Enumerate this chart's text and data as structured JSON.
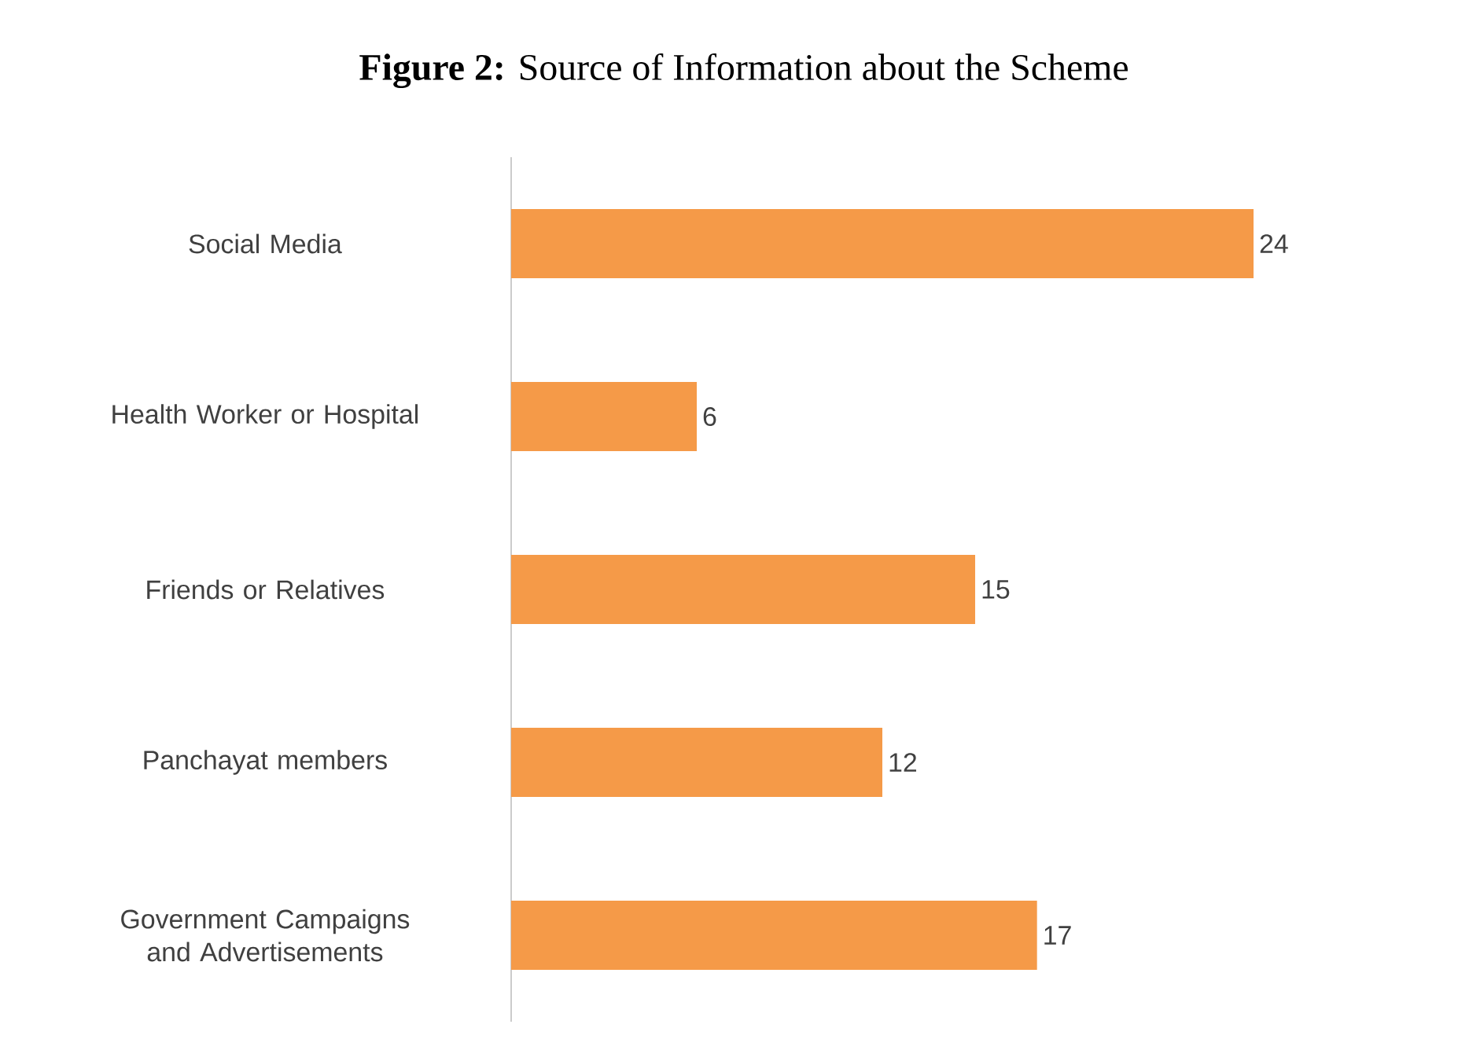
{
  "chart_data": {
    "type": "bar",
    "orientation": "horizontal",
    "title": "**Figure 2:** Source of Information about the Scheme",
    "categories": [
      "Social Media",
      "Health Worker or Hospital",
      "Friends or Relatives",
      "Panchayat members",
      "Government Campaigns and Advertisements"
    ],
    "values": [
      24,
      6,
      15,
      12,
      17
    ],
    "color": "#f59a48",
    "data_labels": true,
    "tick_labels": "y"
  }
}
